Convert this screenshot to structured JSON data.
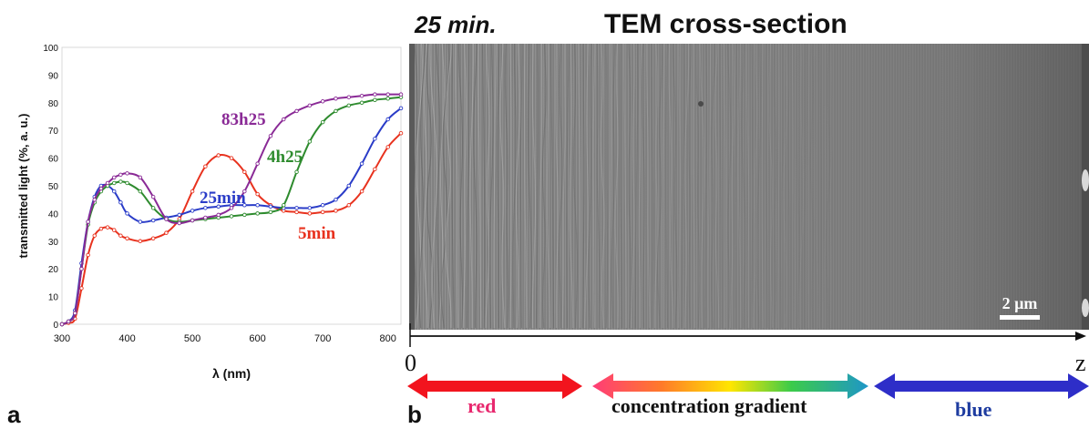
{
  "panel_a": {
    "letter": "a",
    "chart_data": {
      "type": "line",
      "xlabel": "λ (nm)",
      "ylabel": "transmitted light (%, a. u.)",
      "xlim": [
        300,
        820
      ],
      "ylim": [
        0,
        100
      ],
      "x_ticks": [
        "300",
        "400",
        "500",
        "600",
        "700",
        "800"
      ],
      "y_ticks": [
        "0",
        "10",
        "20",
        "30",
        "40",
        "50",
        "60",
        "70",
        "80",
        "90",
        "100"
      ],
      "grid": false,
      "legend": "inline labels",
      "series": [
        {
          "name": "5min",
          "color": "#e8321e",
          "x": [
            300,
            310,
            320,
            330,
            340,
            350,
            360,
            370,
            380,
            390,
            400,
            420,
            440,
            460,
            480,
            500,
            520,
            540,
            560,
            580,
            600,
            620,
            640,
            660,
            680,
            700,
            720,
            740,
            760,
            780,
            800,
            820
          ],
          "y": [
            0,
            0.5,
            2,
            13,
            25,
            32,
            34.5,
            35,
            34,
            32,
            31,
            30,
            31,
            33,
            38,
            48,
            57,
            61,
            60,
            55,
            47,
            43,
            41,
            40.5,
            40,
            40.5,
            41,
            43,
            48,
            56,
            64,
            69
          ]
        },
        {
          "name": "25min",
          "color": "#2a3cc8",
          "x": [
            300,
            310,
            320,
            330,
            340,
            350,
            360,
            370,
            380,
            390,
            400,
            420,
            440,
            460,
            480,
            500,
            520,
            540,
            560,
            580,
            600,
            620,
            640,
            660,
            680,
            700,
            720,
            740,
            760,
            780,
            800,
            820
          ],
          "y": [
            0,
            1,
            5,
            22,
            37,
            46,
            50,
            50,
            48,
            44,
            40,
            37,
            37.5,
            38.5,
            39.5,
            41,
            42,
            42.5,
            43,
            43,
            43,
            42.5,
            42,
            42,
            42,
            43,
            45,
            50,
            58,
            67,
            74,
            78
          ]
        },
        {
          "name": "4h25",
          "color": "#2e8b2e",
          "x": [
            300,
            310,
            320,
            330,
            340,
            350,
            360,
            370,
            380,
            390,
            400,
            420,
            440,
            460,
            480,
            500,
            520,
            540,
            560,
            580,
            600,
            620,
            640,
            660,
            680,
            700,
            720,
            740,
            760,
            780,
            800,
            820
          ],
          "y": [
            0,
            1,
            4,
            20,
            36,
            44,
            48,
            50,
            51,
            51.5,
            51,
            48,
            42,
            38,
            37,
            37.5,
            38,
            38.5,
            39,
            39.5,
            40,
            40.5,
            43,
            55,
            66,
            73,
            77,
            79,
            80,
            81,
            81.5,
            82
          ]
        },
        {
          "name": "83h25",
          "color": "#8a2a96",
          "x": [
            300,
            310,
            320,
            330,
            340,
            350,
            360,
            370,
            380,
            390,
            400,
            420,
            440,
            460,
            480,
            500,
            520,
            540,
            560,
            580,
            600,
            620,
            640,
            660,
            680,
            700,
            720,
            740,
            760,
            780,
            800,
            820
          ],
          "y": [
            0,
            1,
            4,
            20,
            37,
            45,
            49,
            51,
            53,
            54,
            54.5,
            53,
            46,
            38,
            36.5,
            37.5,
            38.5,
            39.5,
            42,
            48,
            58,
            68,
            74,
            77,
            79,
            80.5,
            81.5,
            82,
            82.5,
            83,
            83,
            83
          ]
        }
      ]
    }
  },
  "panel_b": {
    "letter": "b",
    "time_label": "25 min.",
    "title": "TEM cross-section",
    "scale_bar": "2 µm",
    "axis_origin": "0",
    "axis_end": "z",
    "left_label": "red",
    "middle_label": "concentration gradient",
    "right_label": "blue",
    "colors": {
      "red": "#f2141e",
      "red_text": "#e8286e",
      "blue": "#2e2ec8",
      "blue_text": "#1e3ca0",
      "text": "#111111"
    }
  }
}
